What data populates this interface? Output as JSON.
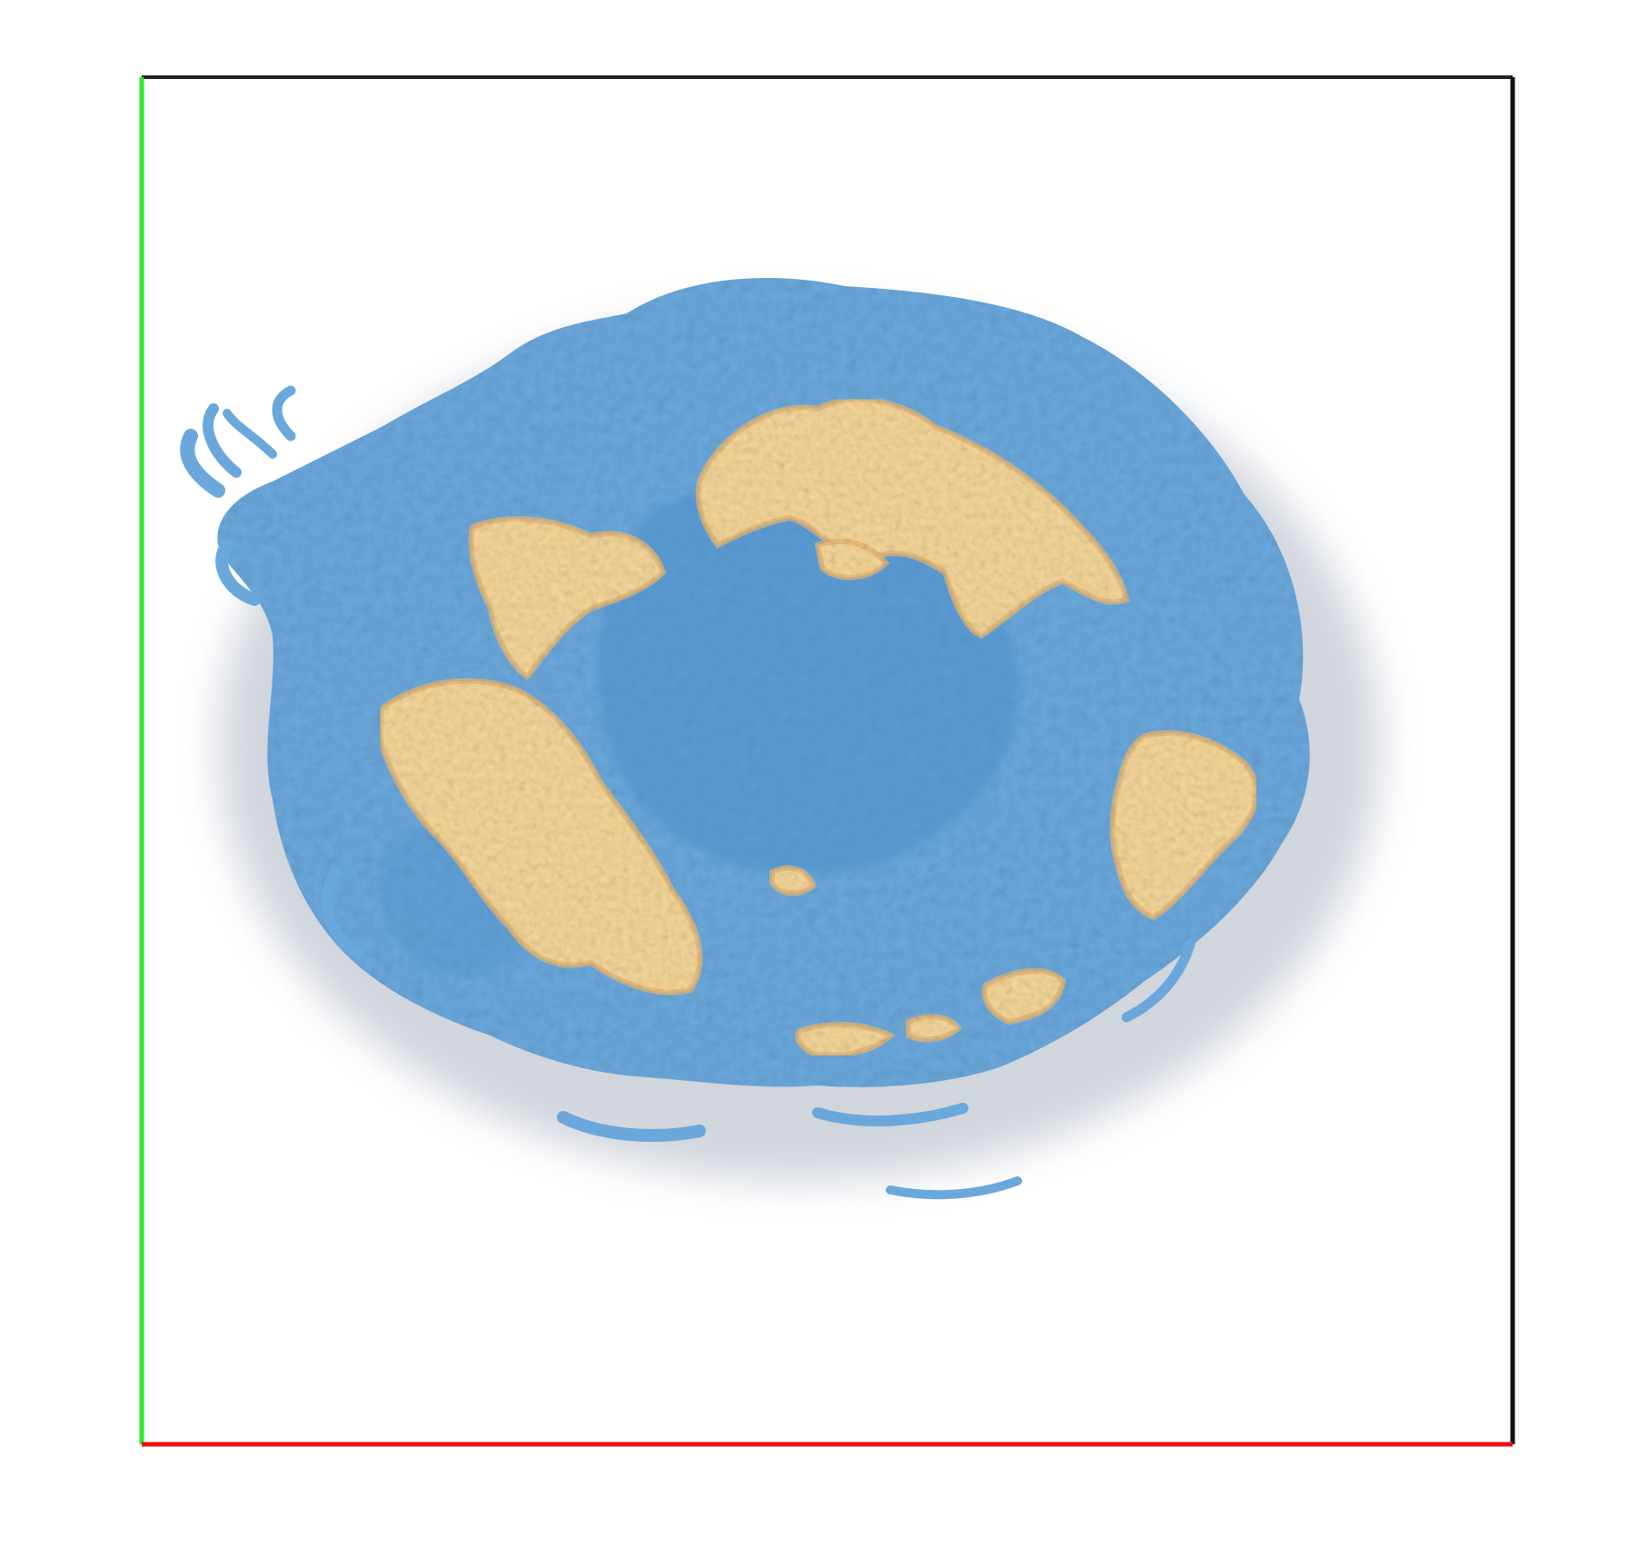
{
  "scene": {
    "background_color": "#ffffff",
    "bounding_box": {
      "left_edge_color": "#22ee22",
      "bottom_edge_color": "#ee1111",
      "top_edge_color": "#222222",
      "right_edge_color": "#111111"
    },
    "volume": {
      "outer_color": "#6aa8dc",
      "inner_color": "#4f8fca",
      "highlight_color": "#f6d79a",
      "highlight_edge_color": "#e8b66d",
      "haze_color": "#9aa3b3"
    }
  }
}
